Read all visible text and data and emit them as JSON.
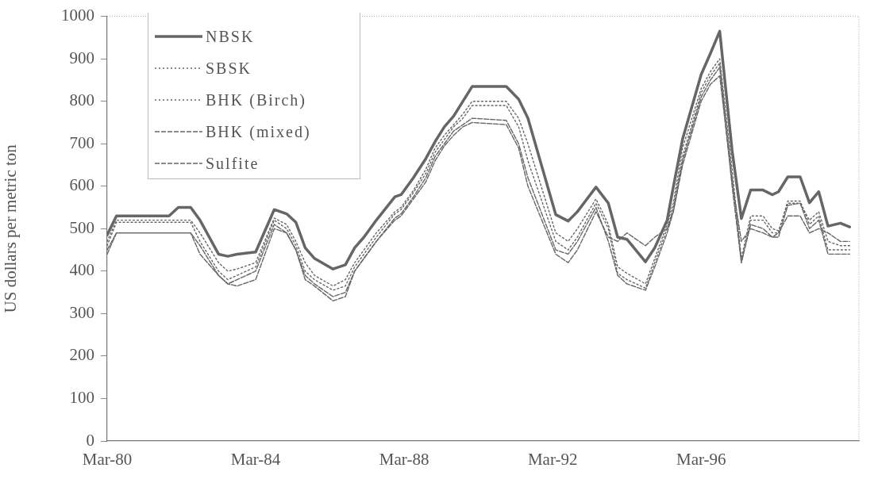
{
  "chart_data": {
    "type": "line",
    "ylabel": "US dollars per metric ton",
    "x": [
      "1980-03",
      "1980-06",
      "1981-11",
      "1982-02",
      "1982-06",
      "1982-09",
      "1983-03",
      "1983-06",
      "1983-09",
      "1984-03",
      "1984-09",
      "1985-01",
      "1985-04",
      "1985-07",
      "1985-10",
      "1986-04",
      "1986-08",
      "1986-11",
      "1987-02",
      "1987-06",
      "1987-12",
      "1988-02",
      "1988-06",
      "1988-10",
      "1989-01",
      "1989-04",
      "1989-07",
      "1989-10",
      "1990-01",
      "1990-12",
      "1991-04",
      "1991-07",
      "1992-04",
      "1992-08",
      "1992-11",
      "1993-05",
      "1993-09",
      "1993-12",
      "1994-03",
      "1994-09",
      "1994-12",
      "1995-04",
      "1995-06",
      "1995-09",
      "1996-03",
      "1996-06",
      "1996-09",
      "1997-01",
      "1997-04",
      "1997-07",
      "1997-11",
      "1998-02",
      "1998-04",
      "1998-07",
      "1998-11",
      "1999-02",
      "1999-05",
      "1999-08",
      "1999-12",
      "2000-03"
    ],
    "series": [
      {
        "name": "NBSK",
        "color": "#666666",
        "line_style": "solid",
        "values": [
          485,
          530,
          530,
          550,
          550,
          520,
          440,
          435,
          440,
          445,
          545,
          535,
          515,
          455,
          430,
          405,
          415,
          455,
          480,
          520,
          575,
          580,
          620,
          665,
          705,
          740,
          765,
          800,
          835,
          835,
          805,
          760,
          533,
          518,
          540,
          598,
          560,
          480,
          475,
          422,
          455,
          520,
          598,
          711,
          863,
          913,
          965,
          684,
          524,
          591,
          591,
          580,
          587,
          622,
          622,
          561,
          587,
          506,
          513,
          504
        ]
      },
      {
        "name": "SBSK",
        "color": "#666666",
        "line_style": "dotted",
        "values": [
          470,
          520,
          520,
          520,
          520,
          490,
          420,
          400,
          405,
          420,
          525,
          510,
          470,
          420,
          390,
          365,
          380,
          420,
          450,
          490,
          540,
          550,
          590,
          640,
          690,
          720,
          745,
          770,
          800,
          800,
          760,
          700,
          490,
          470,
          500,
          570,
          510,
          410,
          395,
          370,
          430,
          510,
          560,
          690,
          830,
          870,
          900,
          640,
          430,
          530,
          530,
          500,
          495,
          560,
          560,
          520,
          540,
          470,
          460,
          460
        ]
      },
      {
        "name": "BHK (Birch)",
        "color": "#666666",
        "line_style": "dotted",
        "values": [
          460,
          515,
          515,
          515,
          515,
          470,
          400,
          380,
          390,
          410,
          520,
          500,
          460,
          400,
          380,
          355,
          365,
          410,
          440,
          480,
          535,
          545,
          585,
          630,
          680,
          710,
          740,
          760,
          790,
          790,
          740,
          660,
          470,
          450,
          480,
          560,
          500,
          395,
          380,
          360,
          420,
          500,
          550,
          670,
          820,
          860,
          890,
          620,
          420,
          520,
          520,
          490,
          490,
          565,
          565,
          510,
          530,
          450,
          450,
          450
        ]
      },
      {
        "name": "BHK (mixed)",
        "color": "#666666",
        "line_style": "dashed",
        "values": [
          450,
          490,
          490,
          490,
          490,
          460,
          390,
          370,
          380,
          400,
          510,
          490,
          450,
          390,
          370,
          340,
          350,
          400,
          430,
          470,
          525,
          535,
          575,
          620,
          670,
          700,
          730,
          745,
          760,
          755,
          700,
          620,
          450,
          440,
          470,
          550,
          470,
          390,
          370,
          355,
          410,
          490,
          540,
          660,
          810,
          850,
          880,
          600,
          420,
          510,
          500,
          480,
          480,
          555,
          560,
          500,
          520,
          440,
          440,
          440
        ]
      },
      {
        "name": "Sulfite",
        "color": "#666666",
        "line_style": "dashed",
        "values": [
          440,
          490,
          490,
          490,
          490,
          440,
          390,
          370,
          365,
          380,
          500,
          490,
          450,
          380,
          365,
          330,
          340,
          400,
          430,
          470,
          520,
          530,
          570,
          610,
          660,
          695,
          720,
          740,
          750,
          745,
          690,
          600,
          440,
          420,
          450,
          540,
          480,
          470,
          490,
          460,
          480,
          500,
          540,
          650,
          800,
          840,
          860,
          610,
          470,
          500,
          490,
          480,
          490,
          530,
          530,
          490,
          500,
          490,
          470,
          470
        ]
      }
    ],
    "xlim": [
      "1980-03",
      "2000-06"
    ],
    "xticks": [
      {
        "value": "1980-03",
        "label": "Mar-80"
      },
      {
        "value": "1984-03",
        "label": "Mar-84"
      },
      {
        "value": "1988-03",
        "label": "Mar-88"
      },
      {
        "value": "1992-03",
        "label": "Mar-92"
      },
      {
        "value": "1996-03",
        "label": "Mar-96"
      }
    ],
    "ylim": [
      0,
      1000
    ],
    "yticks": [
      0,
      100,
      200,
      300,
      400,
      500,
      600,
      700,
      800,
      900,
      1000
    ],
    "grid": false,
    "legend": "top left",
    "marker": "none"
  }
}
